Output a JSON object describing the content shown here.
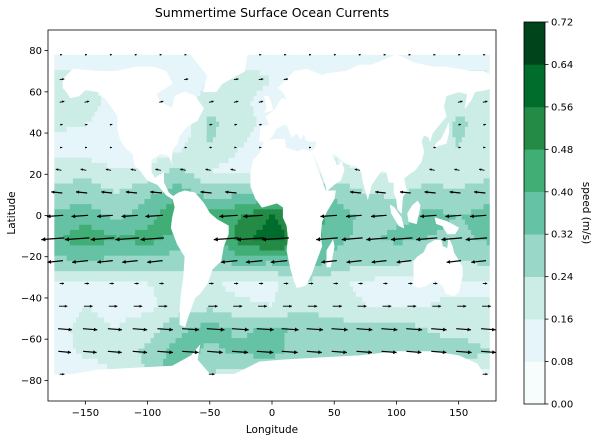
{
  "chart_data": {
    "type": "heatmap",
    "title": "Summertime Surface Ocean Currents",
    "xlabel": "Longitude",
    "ylabel": "Latitude",
    "xlim": [
      -180,
      180
    ],
    "ylim": [
      -90,
      90
    ],
    "xticks": [
      -150,
      -100,
      -50,
      0,
      50,
      100,
      150
    ],
    "yticks": [
      -80,
      -60,
      -40,
      -20,
      0,
      20,
      40,
      60,
      80
    ],
    "grid": false,
    "colorbar": {
      "label": "speed (m/s)",
      "levels": [
        0.0,
        0.08,
        0.16,
        0.24,
        0.32,
        0.4,
        0.48,
        0.56,
        0.64,
        0.72
      ],
      "tick_labels": [
        "0.00",
        "0.08",
        "0.16",
        "0.24",
        "0.32",
        "0.40",
        "0.48",
        "0.56",
        "0.64",
        "0.72"
      ],
      "colors": [
        "#f7fcfd",
        "#e5f5f9",
        "#ccece6",
        "#99d8c9",
        "#66c2a4",
        "#41ae76",
        "#238b45",
        "#006d2c",
        "#00441b"
      ]
    },
    "data_extent": {
      "lon": [
        -175,
        175
      ],
      "lat": [
        -85,
        78
      ]
    },
    "speed_field": {
      "lon": [
        -175,
        -150,
        -125,
        -100,
        -75,
        -50,
        -25,
        0,
        25,
        50,
        75,
        100,
        125,
        150,
        175
      ],
      "lat": [
        78,
        66,
        55,
        44,
        33,
        22,
        11,
        0,
        -11,
        -22,
        -33,
        -44,
        -55,
        -66,
        -77,
        -85
      ],
      "values": [
        [
          0.1,
          0.1,
          0.1,
          0.08,
          0.08,
          0.1,
          0.12,
          0.12,
          0.12,
          0.1,
          0.1,
          0.1,
          0.1,
          0.1,
          0.1
        ],
        [
          0.2,
          0.18,
          0.12,
          0.1,
          0.08,
          0.16,
          0.2,
          0.16,
          0.1,
          0.1,
          0.1,
          0.1,
          0.14,
          0.2,
          0.18
        ],
        [
          0.22,
          0.2,
          0.12,
          0.08,
          0.08,
          0.22,
          0.18,
          0.12,
          0.1,
          0.1,
          0.1,
          0.1,
          0.12,
          0.22,
          0.22
        ],
        [
          0.18,
          0.16,
          0.1,
          0.08,
          0.08,
          0.26,
          0.2,
          0.12,
          0.12,
          0.1,
          0.1,
          0.1,
          0.16,
          0.26,
          0.2
        ],
        [
          0.12,
          0.1,
          0.1,
          0.08,
          0.14,
          0.24,
          0.16,
          0.1,
          0.1,
          0.14,
          0.1,
          0.1,
          0.22,
          0.24,
          0.16
        ],
        [
          0.2,
          0.22,
          0.16,
          0.18,
          0.26,
          0.16,
          0.12,
          0.12,
          0.1,
          0.18,
          0.16,
          0.14,
          0.18,
          0.16,
          0.2
        ],
        [
          0.26,
          0.28,
          0.24,
          0.3,
          0.36,
          0.28,
          0.3,
          0.34,
          0.36,
          0.3,
          0.24,
          0.22,
          0.28,
          0.26,
          0.3
        ],
        [
          0.34,
          0.36,
          0.3,
          0.36,
          0.5,
          0.42,
          0.48,
          0.56,
          0.5,
          0.36,
          0.3,
          0.3,
          0.34,
          0.32,
          0.34
        ],
        [
          0.38,
          0.46,
          0.4,
          0.44,
          0.36,
          0.36,
          0.52,
          0.62,
          0.48,
          0.34,
          0.3,
          0.34,
          0.32,
          0.3,
          0.34
        ],
        [
          0.3,
          0.32,
          0.3,
          0.3,
          0.28,
          0.3,
          0.36,
          0.34,
          0.4,
          0.3,
          0.26,
          0.26,
          0.22,
          0.24,
          0.26
        ],
        [
          0.14,
          0.16,
          0.14,
          0.16,
          0.18,
          0.18,
          0.12,
          0.14,
          0.22,
          0.18,
          0.14,
          0.12,
          0.14,
          0.14,
          0.16
        ],
        [
          0.12,
          0.16,
          0.14,
          0.14,
          0.2,
          0.22,
          0.18,
          0.16,
          0.22,
          0.2,
          0.16,
          0.16,
          0.16,
          0.18,
          0.16
        ],
        [
          0.14,
          0.18,
          0.16,
          0.2,
          0.3,
          0.36,
          0.3,
          0.34,
          0.3,
          0.28,
          0.26,
          0.28,
          0.24,
          0.2,
          0.18
        ],
        [
          0.12,
          0.18,
          0.2,
          0.26,
          0.36,
          0.3,
          0.34,
          0.36,
          0.26,
          0.28,
          0.3,
          0.26,
          0.26,
          0.3,
          0.24
        ],
        [
          0.08,
          0.1,
          0.16,
          0.24,
          0.42,
          0.24,
          0.2,
          0.22,
          0.2,
          0.18,
          0.2,
          0.18,
          0.18,
          0.16,
          0.12
        ],
        [
          0.06,
          0.06,
          0.08,
          0.12,
          0.22,
          0.14,
          0.1,
          0.1,
          0.08,
          0.08,
          0.08,
          0.08,
          0.08,
          0.08,
          0.06
        ]
      ]
    },
    "vector_field": {
      "lon_start": -170,
      "lon_step": 20,
      "lon_count": 18,
      "lat": [
        78,
        66,
        55,
        44,
        33,
        22,
        11,
        0,
        -11,
        -22,
        -33,
        -44,
        -55,
        -66,
        -77
      ],
      "u_by_lat": [
        0.05,
        0.1,
        0.1,
        0.06,
        0.05,
        -0.12,
        -0.22,
        -0.3,
        -0.4,
        -0.3,
        0.1,
        0.2,
        0.32,
        0.3,
        0.12
      ],
      "v_by_lat": [
        0.0,
        0.01,
        0.02,
        0.01,
        0.0,
        0.02,
        0.02,
        -0.02,
        -0.03,
        -0.03,
        0.0,
        0.0,
        -0.02,
        -0.02,
        0.0
      ]
    }
  }
}
